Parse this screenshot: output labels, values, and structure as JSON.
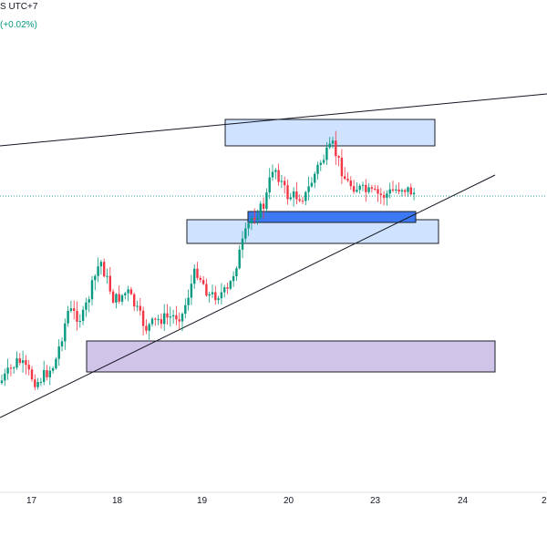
{
  "header": {
    "utc_label": "S UTC+7",
    "change_label": "(+0.02%)"
  },
  "colors": {
    "up": "#089981",
    "down": "#f23645",
    "zone_light": "#cfe2ff",
    "zone_dark": "#2962ff",
    "zone_purple": "#d1c4e9",
    "trendline": "#131722",
    "price_line": "#26a69a"
  },
  "x_axis": {
    "labels": [
      "17",
      "18",
      "19",
      "20",
      "23",
      "24",
      "2"
    ]
  },
  "chart_data": {
    "type": "candlestick",
    "x_tick_labels": [
      "17",
      "18",
      "19",
      "20",
      "23",
      "24",
      "2"
    ],
    "title": "",
    "xlabel": "",
    "ylabel": ""
  }
}
